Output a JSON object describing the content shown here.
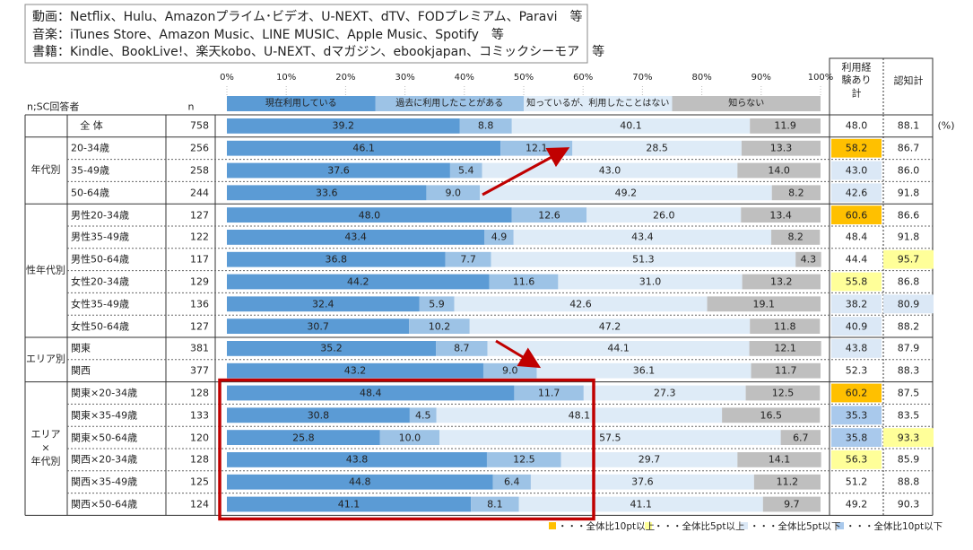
{
  "chart_data": {
    "type": "bar",
    "orientation": "horizontal",
    "stacked": true,
    "note_lines": [
      "動画：Netflix、Hulu、Amazonプライム･ビデオ、U-NEXT、dTV、FODプレミアム、Paravi　等",
      "音楽：iTunes Store、Amazon Music、LINE MUSIC、Apple Music、Spotify　等",
      "書籍：Kindle、BookLive!、楽天kobo、U-NEXT、dマガジン、ebookjapan、コミックシーモア　等"
    ],
    "header": {
      "respondents": "n;SC回答者",
      "n": "n",
      "usage_total": "利用経験あり計",
      "awareness_total": "認知計",
      "unit": "(%)"
    },
    "categories": [
      "全 体",
      "20-34歳",
      "35-49歳",
      "50-64歳",
      "男性20-34歳",
      "男性35-49歳",
      "男性50-64歳",
      "女性20-34歳",
      "女性35-49歳",
      "女性50-64歳",
      "関東",
      "関西",
      "関東×20-34歳",
      "関東×35-49歳",
      "関東×50-64歳",
      "関西×20-34歳",
      "関西×35-49歳",
      "関西×50-64歳"
    ],
    "row_groups": [
      null,
      "年代別",
      "年代別",
      "年代別",
      "性年代別",
      "性年代別",
      "性年代別",
      "性年代別",
      "性年代別",
      "性年代別",
      "エリア別",
      "エリア別",
      "エリア\n×\n年代別",
      "エリア\n×\n年代別",
      "エリア\n×\n年代別",
      "エリア\n×\n年代別",
      "エリア\n×\n年代別",
      "エリア\n×\n年代別"
    ],
    "n": [
      758,
      256,
      258,
      244,
      127,
      122,
      117,
      129,
      136,
      127,
      381,
      377,
      128,
      133,
      120,
      128,
      125,
      124
    ],
    "xlim": [
      0,
      100
    ],
    "xticks": [
      {
        "value": 0,
        "label": "0%"
      },
      {
        "value": 10,
        "label": "10%"
      },
      {
        "value": 20,
        "label": "20%"
      },
      {
        "value": 30,
        "label": "30%"
      },
      {
        "value": 40,
        "label": "40%"
      },
      {
        "value": 50,
        "label": "50%"
      },
      {
        "value": 60,
        "label": "60%"
      },
      {
        "value": 70,
        "label": "70%"
      },
      {
        "value": 80,
        "label": "80%"
      },
      {
        "value": 90,
        "label": "90%"
      },
      {
        "value": 100,
        "label": "100%"
      }
    ],
    "series": [
      {
        "name": "現在利用している",
        "color": "#5b9bd5",
        "values": [
          39.2,
          46.1,
          37.6,
          33.6,
          48.0,
          43.4,
          36.8,
          44.2,
          32.4,
          30.7,
          35.2,
          43.2,
          48.4,
          30.8,
          25.8,
          43.8,
          44.8,
          41.1
        ],
        "value_labels": [
          "39.2",
          "46.1",
          "37.6",
          "33.6",
          "48.0",
          "43.4",
          "36.8",
          "44.2",
          "32.4",
          "30.7",
          "35.2",
          "43.2",
          "48.4",
          "30.8",
          "25.8",
          "43.8",
          "44.8",
          "41.1"
        ]
      },
      {
        "name": "過去に利用したことがある",
        "color": "#9dc3e6",
        "values": [
          8.8,
          12.1,
          5.4,
          9.0,
          12.6,
          4.9,
          7.7,
          11.6,
          5.9,
          10.2,
          8.7,
          9.0,
          11.7,
          4.5,
          10.0,
          12.5,
          6.4,
          8.1
        ],
        "value_labels": [
          "8.8",
          "12.1",
          "5.4",
          "9.0",
          "12.6",
          "4.9",
          "7.7",
          "11.6",
          "5.9",
          "10.2",
          "8.7",
          "9.0",
          "11.7",
          "4.5",
          "10.0",
          "12.5",
          "6.4",
          "8.1"
        ]
      },
      {
        "name": "知っているが、利用したことはない",
        "color": "#deebf7",
        "values": [
          40.1,
          28.5,
          43.0,
          49.2,
          26.0,
          43.4,
          51.3,
          31.0,
          42.6,
          47.2,
          44.1,
          36.1,
          27.3,
          48.1,
          57.5,
          29.7,
          37.6,
          41.1
        ],
        "value_labels": [
          "40.1",
          "28.5",
          "43.0",
          "49.2",
          "26.0",
          "43.4",
          "51.3",
          "31.0",
          "42.6",
          "47.2",
          "44.1",
          "36.1",
          "27.3",
          "48.1",
          "57.5",
          "29.7",
          "37.6",
          "41.1"
        ]
      },
      {
        "name": "知らない",
        "color": "#bfbfbf",
        "values": [
          11.9,
          13.3,
          14.0,
          8.2,
          13.4,
          8.2,
          4.3,
          13.2,
          19.1,
          11.8,
          12.1,
          11.7,
          12.5,
          16.5,
          6.7,
          14.1,
          11.2,
          9.7
        ],
        "value_labels": [
          "11.9",
          "13.3",
          "14.0",
          "8.2",
          "13.4",
          "8.2",
          "4.3",
          "13.2",
          "19.1",
          "11.8",
          "12.1",
          "11.7",
          "12.5",
          "16.5",
          "6.7",
          "14.1",
          "11.2",
          "9.7"
        ]
      }
    ],
    "usage_total": {
      "values": [
        48.0,
        58.2,
        43.0,
        42.6,
        60.6,
        48.4,
        44.4,
        55.8,
        38.2,
        40.9,
        43.8,
        52.3,
        60.2,
        35.3,
        35.8,
        56.3,
        51.2,
        49.2
      ],
      "value_labels": [
        "48.0",
        "58.2",
        "43.0",
        "42.6",
        "60.6",
        "48.4",
        "44.4",
        "55.8",
        "38.2",
        "40.9",
        "43.8",
        "52.3",
        "60.2",
        "35.3",
        "35.8",
        "56.3",
        "51.2",
        "49.2"
      ],
      "colors": [
        null,
        "#ffc000",
        "#dbe8f6",
        "#dbe8f6",
        "#ffc000",
        null,
        null,
        "#ffff99",
        "#dbe8f6",
        "#dbe8f6",
        "#dbe8f6",
        null,
        "#ffc000",
        "#a9c9ec",
        "#a9c9ec",
        "#ffff99",
        null,
        null
      ]
    },
    "awareness_total": {
      "values": [
        88.1,
        86.7,
        86.0,
        91.8,
        86.6,
        91.8,
        95.7,
        86.8,
        80.9,
        88.2,
        87.9,
        88.3,
        87.5,
        83.5,
        93.3,
        85.9,
        88.8,
        90.3
      ],
      "value_labels": [
        "88.1",
        "86.7",
        "86.0",
        "91.8",
        "86.6",
        "91.8",
        "95.7",
        "86.8",
        "80.9",
        "88.2",
        "87.9",
        "88.3",
        "87.5",
        "83.5",
        "93.3",
        "85.9",
        "88.8",
        "90.3"
      ],
      "colors": [
        null,
        null,
        null,
        null,
        null,
        null,
        "#ffff99",
        null,
        "#dbe8f6",
        null,
        null,
        null,
        null,
        null,
        "#ffff99",
        null,
        null,
        null
      ]
    },
    "highlight_legend": [
      {
        "color": "#ffc000",
        "label": "・・・全体比10pt以上"
      },
      {
        "color": "#ffff99",
        "label": "・・・全体比5pt以上"
      },
      {
        "color": "#dbe8f6",
        "label": "・・・全体比5pt以下"
      },
      {
        "color": "#a9c9ec",
        "label": "・・・全体比10pt以下"
      }
    ]
  }
}
